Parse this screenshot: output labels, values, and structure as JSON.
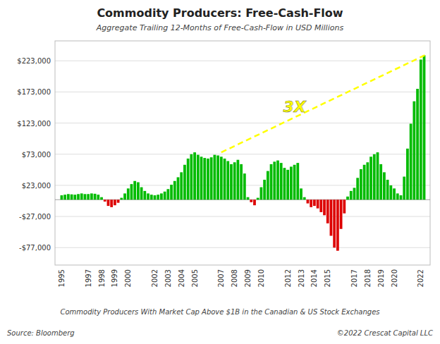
{
  "chart_data": {
    "type": "bar",
    "title": "Commodity Producers: Free-Cash-Flow",
    "subtitle": "Aggregate Trailing 12-Months of Free-Cash-Flow in USD Millions",
    "caption": "Commodity Producers With Market Cap Above $1B in the Canadian & US Stock Exchanges",
    "source": "Source: Bloomberg",
    "credit": "©2022 Crescat Capital LLC",
    "x": [
      1995,
      1995.25,
      1995.5,
      1995.75,
      1996,
      1996.25,
      1996.5,
      1996.75,
      1997,
      1997.25,
      1997.5,
      1997.75,
      1998,
      1998.25,
      1998.5,
      1998.75,
      1999,
      1999.25,
      1999.5,
      1999.75,
      2000,
      2000.25,
      2000.5,
      2000.75,
      2001,
      2001.25,
      2001.5,
      2001.75,
      2002,
      2002.25,
      2002.5,
      2002.75,
      2003,
      2003.25,
      2003.5,
      2003.75,
      2004,
      2004.25,
      2004.5,
      2004.75,
      2005,
      2005.25,
      2005.5,
      2005.75,
      2006,
      2006.25,
      2006.5,
      2006.75,
      2007,
      2007.25,
      2007.5,
      2007.75,
      2008,
      2008.25,
      2008.5,
      2008.75,
      2009,
      2009.25,
      2009.5,
      2009.75,
      2010,
      2010.25,
      2010.5,
      2010.75,
      2011,
      2011.25,
      2011.5,
      2011.75,
      2012,
      2012.25,
      2012.5,
      2012.75,
      2013,
      2013.25,
      2013.5,
      2013.75,
      2014,
      2014.25,
      2014.5,
      2014.75,
      2015,
      2015.25,
      2015.5,
      2015.75,
      2016,
      2016.25,
      2016.5,
      2016.75,
      2017,
      2017.25,
      2017.5,
      2017.75,
      2018,
      2018.25,
      2018.5,
      2018.75,
      2019,
      2019.25,
      2019.5,
      2019.75,
      2020,
      2020.25,
      2020.5,
      2020.75,
      2021,
      2021.25,
      2021.5,
      2021.75,
      2022,
      2022.25
    ],
    "values": [
      7000,
      8000,
      9000,
      8500,
      8000,
      9000,
      10000,
      9000,
      9000,
      10000,
      9500,
      8000,
      4000,
      -3000,
      -10000,
      -12000,
      -9000,
      -5000,
      3000,
      10000,
      18000,
      25000,
      30000,
      28000,
      20000,
      14000,
      10000,
      8000,
      7000,
      8000,
      10000,
      13000,
      17000,
      24000,
      30000,
      36000,
      44000,
      56000,
      66000,
      73000,
      76000,
      72000,
      69000,
      67000,
      66000,
      68000,
      72000,
      71000,
      69000,
      66000,
      62000,
      57000,
      60000,
      64000,
      57000,
      42000,
      4000,
      -4000,
      -9000,
      3000,
      20000,
      32000,
      46000,
      57000,
      61000,
      63000,
      59000,
      51000,
      48000,
      53000,
      56000,
      59000,
      18000,
      4000,
      -6000,
      -12000,
      -10000,
      -14000,
      -20000,
      -25000,
      -38000,
      -58000,
      -77000,
      -82000,
      -47000,
      -22000,
      5000,
      14000,
      19000,
      35000,
      49000,
      56000,
      60000,
      69000,
      73000,
      76000,
      57000,
      44000,
      32000,
      23000,
      18000,
      10000,
      7000,
      37000,
      82000,
      122000,
      158000,
      178000,
      225000,
      232000
    ],
    "colors": [
      "#00bb00",
      "#00bb00",
      "#00bb00",
      "#00bb00",
      "#00bb00",
      "#00bb00",
      "#00bb00",
      "#00bb00",
      "#00bb00",
      "#00bb00",
      "#00bb00",
      "#00bb00",
      "#00bb00",
      "#dd0000",
      "#dd0000",
      "#dd0000",
      "#dd0000",
      "#dd0000",
      "#00bb00",
      "#00bb00",
      "#00bb00",
      "#00bb00",
      "#00bb00",
      "#00bb00",
      "#00bb00",
      "#00bb00",
      "#00bb00",
      "#00bb00",
      "#00bb00",
      "#00bb00",
      "#00bb00",
      "#00bb00",
      "#00bb00",
      "#00bb00",
      "#00bb00",
      "#00bb00",
      "#00bb00",
      "#00bb00",
      "#00bb00",
      "#00bb00",
      "#00bb00",
      "#00bb00",
      "#00bb00",
      "#00bb00",
      "#00bb00",
      "#00bb00",
      "#00bb00",
      "#00bb00",
      "#00bb00",
      "#00bb00",
      "#00bb00",
      "#00bb00",
      "#00bb00",
      "#00bb00",
      "#00bb00",
      "#00bb00",
      "#00bb00",
      "#dd0000",
      "#dd0000",
      "#00bb00",
      "#00bb00",
      "#00bb00",
      "#00bb00",
      "#00bb00",
      "#00bb00",
      "#00bb00",
      "#00bb00",
      "#00bb00",
      "#00bb00",
      "#00bb00",
      "#00bb00",
      "#00bb00",
      "#00bb00",
      "#00bb00",
      "#dd0000",
      "#dd0000",
      "#dd0000",
      "#dd0000",
      "#dd0000",
      "#dd0000",
      "#dd0000",
      "#dd0000",
      "#dd0000",
      "#dd0000",
      "#dd0000",
      "#dd0000",
      "#00bb00",
      "#00bb00",
      "#00bb00",
      "#00bb00",
      "#00bb00",
      "#00bb00",
      "#00bb00",
      "#00bb00",
      "#00bb00",
      "#00bb00",
      "#00bb00",
      "#00bb00",
      "#00bb00",
      "#00bb00",
      "#00bb00",
      "#00bb00",
      "#00bb00",
      "#00bb00",
      "#00bb00",
      "#00bb00",
      "#00bb00",
      "#00bb00",
      "#00bb00",
      "#00bb00"
    ],
    "xlim": [
      1994.5,
      2022.7
    ],
    "xticks": [
      1995,
      1997,
      1998,
      1999,
      2000,
      2002,
      2003,
      2004,
      2005,
      2007,
      2008,
      2009,
      2010,
      2012,
      2013,
      2014,
      2015,
      2017,
      2018,
      2019,
      2020,
      2022
    ],
    "ylim": [
      -105000,
      255000
    ],
    "yticks": [
      {
        "value": -77000,
        "label": "-$77,000"
      },
      {
        "value": -27000,
        "label": "-$27,000"
      },
      {
        "value": 23000,
        "label": "$23,000"
      },
      {
        "value": 73000,
        "label": "$73,000"
      },
      {
        "value": 123000,
        "label": "$123,000"
      },
      {
        "value": 173000,
        "label": "$173,000"
      },
      {
        "value": 223000,
        "label": "$223,000"
      }
    ],
    "grid": true,
    "annotations": [
      {
        "type": "line",
        "x": [
          2007.0,
          2022.3
        ],
        "y": [
          76000,
          232000
        ],
        "color": "#ffff00",
        "line_style": "dashed"
      },
      {
        "text": "3X",
        "x": 2012.5,
        "y": 148000,
        "color": "#ffff00"
      }
    ]
  }
}
